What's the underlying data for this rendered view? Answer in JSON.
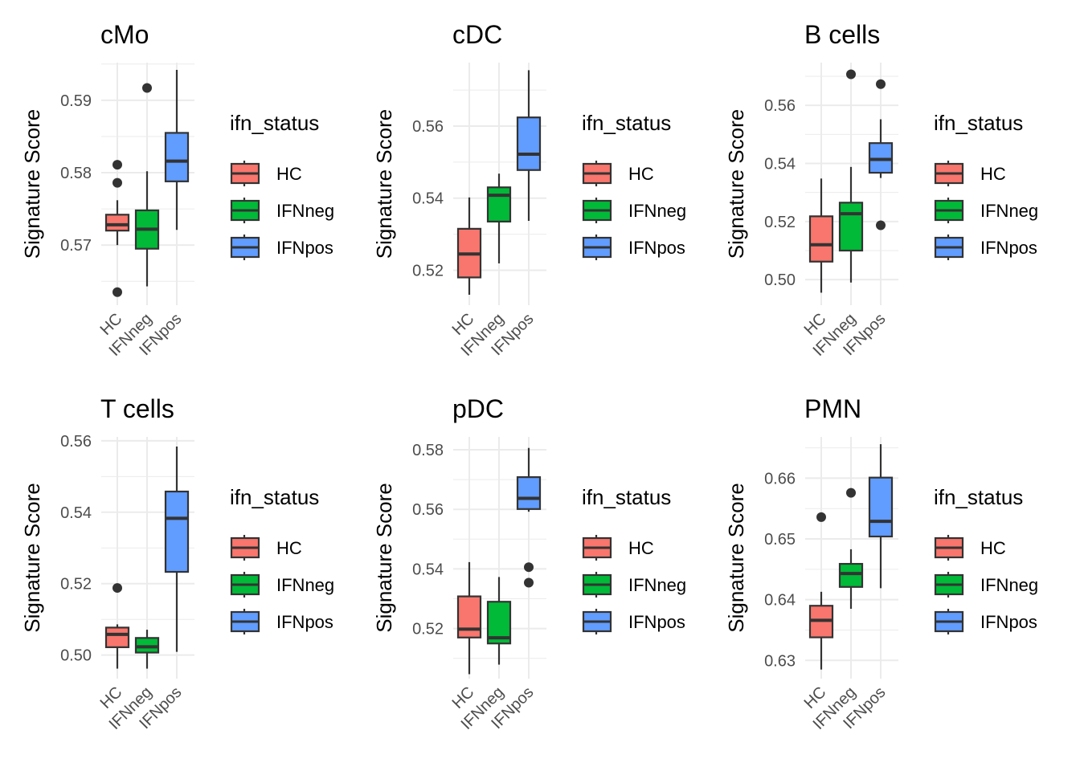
{
  "chart_data": [
    {
      "type": "boxplot",
      "title": "cMo",
      "ylabel": "Signature Score",
      "categories": [
        "HC",
        "IFNneg",
        "IFNpos"
      ],
      "yticks": [
        0.57,
        0.58,
        0.59
      ],
      "ytick_labels": [
        "0.57",
        "0.58",
        "0.59"
      ],
      "ylim": [
        0.5617,
        0.5952
      ],
      "legend": {
        "title": "ifn_status",
        "entries": [
          "HC",
          "IFNneg",
          "IFNpos"
        ],
        "position": "right"
      },
      "boxes": [
        {
          "group": "HC",
          "whisker_low": 0.57,
          "q1": 0.572,
          "median": 0.5728,
          "q3": 0.5742,
          "whisker_high": 0.5762,
          "outliers": [
            0.5811,
            0.5786,
            0.5635
          ]
        },
        {
          "group": "IFNneg",
          "whisker_low": 0.5643,
          "q1": 0.5695,
          "median": 0.5722,
          "q3": 0.5748,
          "whisker_high": 0.5802,
          "outliers": [
            0.5917
          ]
        },
        {
          "group": "IFNpos",
          "whisker_low": 0.5721,
          "q1": 0.5788,
          "median": 0.5816,
          "q3": 0.5855,
          "whisker_high": 0.5942,
          "outliers": []
        }
      ]
    },
    {
      "type": "boxplot",
      "title": "cDC",
      "ylabel": "Signature Score",
      "categories": [
        "HC",
        "IFNneg",
        "IFNpos"
      ],
      "yticks": [
        0.52,
        0.54,
        0.56
      ],
      "ytick_labels": [
        "0.52",
        "0.54",
        "0.56"
      ],
      "ylim": [
        0.5103,
        0.5776
      ],
      "legend": {
        "title": "ifn_status",
        "entries": [
          "HC",
          "IFNneg",
          "IFNpos"
        ],
        "position": "right"
      },
      "boxes": [
        {
          "group": "HC",
          "whisker_low": 0.5132,
          "q1": 0.518,
          "median": 0.5245,
          "q3": 0.5315,
          "whisker_high": 0.5402,
          "outliers": []
        },
        {
          "group": "IFNneg",
          "whisker_low": 0.5219,
          "q1": 0.5335,
          "median": 0.5408,
          "q3": 0.543,
          "whisker_high": 0.5468,
          "outliers": []
        },
        {
          "group": "IFNpos",
          "whisker_low": 0.5337,
          "q1": 0.5478,
          "median": 0.5522,
          "q3": 0.5624,
          "whisker_high": 0.5755,
          "outliers": []
        }
      ]
    },
    {
      "type": "boxplot",
      "title": "B cells",
      "ylabel": "Signature Score",
      "categories": [
        "HC",
        "IFNneg",
        "IFNpos"
      ],
      "yticks": [
        0.5,
        0.52,
        0.54,
        0.56
      ],
      "ytick_labels": [
        "0.50",
        "0.52",
        "0.54",
        "0.56"
      ],
      "ylim": [
        0.4912,
        0.5747
      ],
      "legend": {
        "title": "ifn_status",
        "entries": [
          "HC",
          "IFNneg",
          "IFNpos"
        ],
        "position": "right"
      },
      "boxes": [
        {
          "group": "HC",
          "whisker_low": 0.4955,
          "q1": 0.5062,
          "median": 0.512,
          "q3": 0.5218,
          "whisker_high": 0.5348,
          "outliers": []
        },
        {
          "group": "IFNneg",
          "whisker_low": 0.499,
          "q1": 0.51,
          "median": 0.5227,
          "q3": 0.5265,
          "whisker_high": 0.5388,
          "outliers": [
            0.5707
          ]
        },
        {
          "group": "IFNpos",
          "whisker_low": 0.535,
          "q1": 0.5368,
          "median": 0.5414,
          "q3": 0.547,
          "whisker_high": 0.5552,
          "outliers": [
            0.5673,
            0.5187
          ]
        }
      ]
    },
    {
      "type": "boxplot",
      "title": "T cells",
      "ylabel": "Signature Score",
      "categories": [
        "HC",
        "IFNneg",
        "IFNpos"
      ],
      "yticks": [
        0.5,
        0.52,
        0.54,
        0.56
      ],
      "ytick_labels": [
        "0.50",
        "0.52",
        "0.54",
        "0.56"
      ],
      "ylim": [
        0.4934,
        0.5611
      ],
      "legend": {
        "title": "ifn_status",
        "entries": [
          "HC",
          "IFNneg",
          "IFNpos"
        ],
        "position": "right"
      },
      "boxes": [
        {
          "group": "HC",
          "whisker_low": 0.4962,
          "q1": 0.5022,
          "median": 0.5058,
          "q3": 0.5077,
          "whisker_high": 0.5086,
          "outliers": [
            0.5188
          ]
        },
        {
          "group": "IFNneg",
          "whisker_low": 0.4962,
          "q1": 0.5007,
          "median": 0.5023,
          "q3": 0.5048,
          "whisker_high": 0.5071,
          "outliers": []
        },
        {
          "group": "IFNpos",
          "whisker_low": 0.5009,
          "q1": 0.5233,
          "median": 0.5383,
          "q3": 0.5458,
          "whisker_high": 0.5584,
          "outliers": []
        }
      ]
    },
    {
      "type": "boxplot",
      "title": "pDC",
      "ylabel": "Signature Score",
      "categories": [
        "HC",
        "IFNneg",
        "IFNpos"
      ],
      "yticks": [
        0.52,
        0.54,
        0.56,
        0.58
      ],
      "ytick_labels": [
        "0.52",
        "0.54",
        "0.56",
        "0.58"
      ],
      "ylim": [
        0.5032,
        0.5843
      ],
      "legend": {
        "title": "ifn_status",
        "entries": [
          "HC",
          "IFNneg",
          "IFNpos"
        ],
        "position": "right"
      },
      "boxes": [
        {
          "group": "HC",
          "whisker_low": 0.5047,
          "q1": 0.517,
          "median": 0.5198,
          "q3": 0.5308,
          "whisker_high": 0.5423,
          "outliers": []
        },
        {
          "group": "IFNneg",
          "whisker_low": 0.5079,
          "q1": 0.515,
          "median": 0.5169,
          "q3": 0.529,
          "whisker_high": 0.5373,
          "outliers": []
        },
        {
          "group": "IFNpos",
          "whisker_low": 0.5592,
          "q1": 0.5601,
          "median": 0.5637,
          "q3": 0.5708,
          "whisker_high": 0.5806,
          "outliers": [
            0.5406,
            0.5354
          ]
        }
      ]
    },
    {
      "type": "boxplot",
      "title": "PMN",
      "ylabel": "Signature Score",
      "categories": [
        "HC",
        "IFNneg",
        "IFNpos"
      ],
      "yticks": [
        0.63,
        0.64,
        0.65,
        0.66
      ],
      "ytick_labels": [
        "0.63",
        "0.64",
        "0.65",
        "0.66"
      ],
      "ylim": [
        0.627,
        0.6668
      ],
      "legend": {
        "title": "ifn_status",
        "entries": [
          "HC",
          "IFNneg",
          "IFNpos"
        ],
        "position": "right"
      },
      "boxes": [
        {
          "group": "HC",
          "whisker_low": 0.6285,
          "q1": 0.6338,
          "median": 0.6366,
          "q3": 0.639,
          "whisker_high": 0.6413,
          "outliers": [
            0.6536
          ]
        },
        {
          "group": "IFNneg",
          "whisker_low": 0.6385,
          "q1": 0.6421,
          "median": 0.6443,
          "q3": 0.6459,
          "whisker_high": 0.6483,
          "outliers": [
            0.6576
          ]
        },
        {
          "group": "IFNpos",
          "whisker_low": 0.6419,
          "q1": 0.6504,
          "median": 0.6529,
          "q3": 0.6601,
          "whisker_high": 0.6656,
          "outliers": []
        }
      ]
    }
  ],
  "colors": {
    "HC": "#F8766D",
    "IFNneg": "#00BA38",
    "IFNpos": "#619CFF",
    "grid": "#ebebeb",
    "line": "#333333",
    "tick_text": "#4d4d4d"
  }
}
